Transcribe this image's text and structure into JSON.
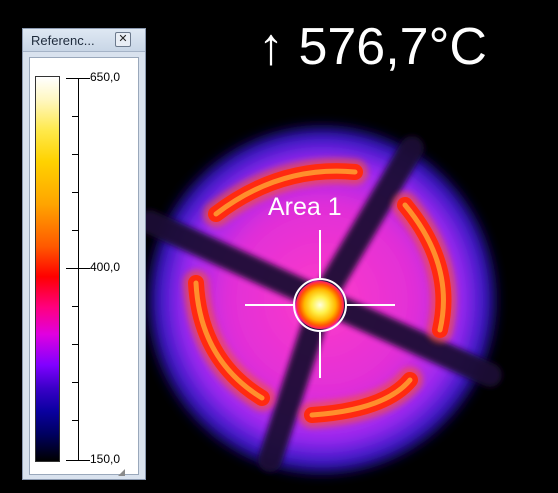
{
  "max_readout": {
    "arrow": "↑",
    "value": "576,7°C"
  },
  "area": {
    "label": "Area 1"
  },
  "reference_panel": {
    "title": "Referenc...",
    "close_glyph": "✕",
    "scale": {
      "top_label": "650,0",
      "mid_label": "400,0",
      "bottom_label": "150,0"
    }
  },
  "colors": {
    "background": "#000000",
    "panel": "#d9e2ee",
    "hot_core": "#fff8b0",
    "ring_mid": "#ffae00",
    "ring_hot": "#ff3300",
    "disk_magenta": "#e62ec8",
    "disk_edge": "#2a1ab0"
  }
}
